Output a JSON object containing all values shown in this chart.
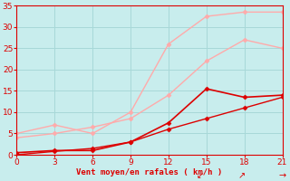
{
  "xlabel": "Vent moyen/en rafales ( km/h )",
  "xlim": [
    0,
    21
  ],
  "ylim": [
    0,
    35
  ],
  "xticks": [
    0,
    3,
    6,
    9,
    12,
    15,
    18,
    21
  ],
  "yticks": [
    0,
    5,
    10,
    15,
    20,
    25,
    30,
    35
  ],
  "background_color": "#c8eded",
  "grid_color": "#a8d8d8",
  "lines": [
    {
      "x": [
        0,
        3,
        6,
        9,
        12,
        15,
        18,
        21
      ],
      "y": [
        5.0,
        7.0,
        5.0,
        10.0,
        26.0,
        32.5,
        33.5,
        33.5
      ],
      "color": "#ffaaaa",
      "linewidth": 1.0,
      "marker": "D",
      "markersize": 2.5
    },
    {
      "x": [
        0,
        3,
        6,
        9,
        12,
        15,
        18,
        21
      ],
      "y": [
        4.0,
        5.0,
        6.5,
        8.5,
        14.0,
        22.0,
        27.0,
        25.0
      ],
      "color": "#ffaaaa",
      "linewidth": 1.0,
      "marker": "D",
      "markersize": 2.5
    },
    {
      "x": [
        0,
        3,
        6,
        9,
        12,
        15,
        18,
        21
      ],
      "y": [
        0.5,
        1.0,
        1.0,
        3.0,
        7.5,
        15.5,
        13.5,
        14.0
      ],
      "color": "#dd0000",
      "linewidth": 1.2,
      "marker": "D",
      "markersize": 2.5
    },
    {
      "x": [
        0,
        3,
        6,
        9,
        12,
        15,
        18,
        21
      ],
      "y": [
        0.0,
        0.8,
        1.5,
        3.0,
        6.0,
        8.5,
        11.0,
        13.5
      ],
      "color": "#dd0000",
      "linewidth": 1.0,
      "marker": "D",
      "markersize": 2.5
    }
  ],
  "arrow_texts": [
    {
      "x": 14.5,
      "label": "↙"
    },
    {
      "x": 17.8,
      "label": "↗"
    },
    {
      "x": 21.0,
      "label": "→"
    }
  ],
  "xlabel_color": "#dd0000",
  "xlabel_fontsize": 6.5,
  "tick_color": "#dd0000",
  "tick_fontsize": 6.5,
  "spine_color": "#dd0000"
}
